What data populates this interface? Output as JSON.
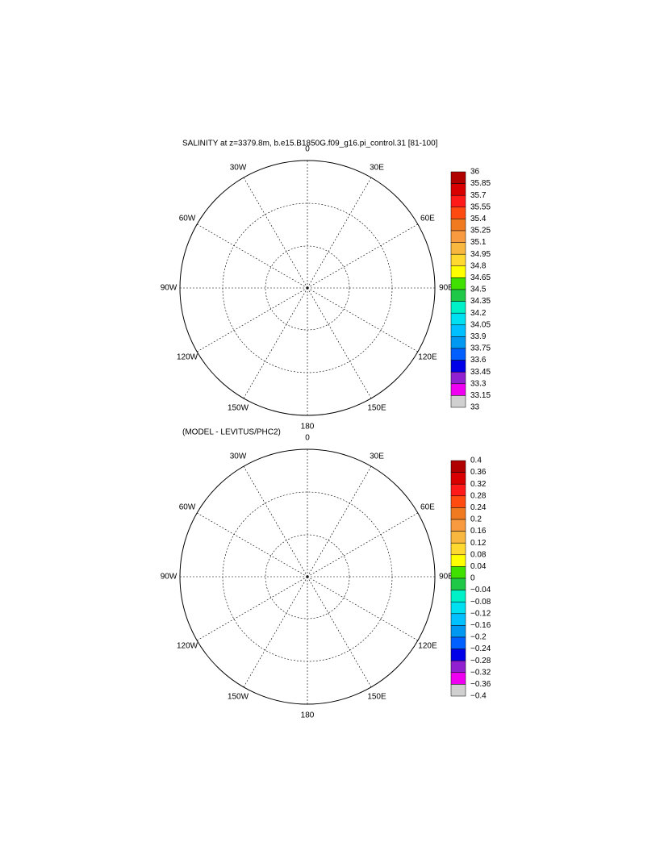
{
  "maps": [
    {
      "title": "SALINITY at z=3379.8m, b.e15.B1850G.f09_g16.pi_control.31 [81-100]",
      "lon_labels": [
        "0",
        "30E",
        "60E",
        "90E",
        "120E",
        "150E",
        "180",
        "150W",
        "120W",
        "90W",
        "60W",
        "30W"
      ],
      "colorbar": {
        "labels": [
          "36",
          "35.85",
          "35.7",
          "35.55",
          "35.4",
          "35.25",
          "35.1",
          "34.95",
          "34.8",
          "34.65",
          "34.5",
          "34.35",
          "34.2",
          "34.05",
          "33.9",
          "33.75",
          "33.6",
          "33.45",
          "33.3",
          "33.15",
          "33"
        ],
        "colors": [
          "#b00000",
          "#d80000",
          "#ff1a1a",
          "#ff4a10",
          "#f07a20",
          "#f89a40",
          "#f8b840",
          "#ffd830",
          "#ffff00",
          "#40e000",
          "#20c848",
          "#00f0c8",
          "#00e0f0",
          "#00c0ff",
          "#0098f0",
          "#0060ff",
          "#0000e8",
          "#9020d0",
          "#f000f0",
          "#d0d0d0",
          "#707070"
        ]
      }
    },
    {
      "title": "(MODEL - LEVITUS/PHC2)",
      "lon_labels": [
        "0",
        "30E",
        "60E",
        "90E",
        "120E",
        "150E",
        "180",
        "150W",
        "120W",
        "90W",
        "60W",
        "30W"
      ],
      "colorbar": {
        "labels": [
          "0.4",
          "0.36",
          "0.32",
          "0.28",
          "0.24",
          "0.2",
          "0.16",
          "0.12",
          "0.08",
          "0.04",
          "0",
          "−0.04",
          "−0.08",
          "−0.12",
          "−0.16",
          "−0.2",
          "−0.24",
          "−0.28",
          "−0.32",
          "−0.36",
          "−0.4"
        ],
        "colors": [
          "#b00000",
          "#d80000",
          "#ff1a1a",
          "#ff4a10",
          "#f07a20",
          "#f89a40",
          "#f8b840",
          "#ffd830",
          "#ffff00",
          "#40e000",
          "#20c848",
          "#00f0c8",
          "#00e0f0",
          "#00c0ff",
          "#0098f0",
          "#0060ff",
          "#0000e8",
          "#9020d0",
          "#f000f0",
          "#d0d0d0",
          "#707070"
        ]
      }
    }
  ]
}
